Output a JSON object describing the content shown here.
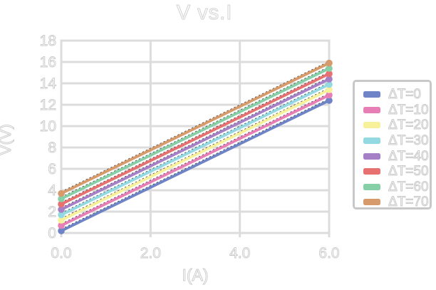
{
  "title": "V vs.I",
  "colors": {
    "background": "#ffffff",
    "grid": "#dcdcdc",
    "frame": "#dcdcdc",
    "text_fill": "#ffffff",
    "text_stroke": "#c9c9c9",
    "legend_border": "#c8c8c8",
    "trendline": "#2a2a2a"
  },
  "chart_data": {
    "type": "line",
    "title": "V vs.I",
    "xlabel": "I(A)",
    "ylabel": "V(V)",
    "xlim": [
      0,
      6
    ],
    "ylim": [
      0,
      18
    ],
    "xticks": [
      0,
      2,
      4,
      6
    ],
    "xtick_labels": [
      "0.0",
      "2.0",
      "4.0",
      "6.0"
    ],
    "yticks": [
      0,
      2,
      4,
      6,
      8,
      10,
      12,
      14,
      16,
      18
    ],
    "ytick_labels": [
      "0",
      "2",
      "4",
      "6",
      "8",
      "10",
      "12",
      "14",
      "16",
      "18"
    ],
    "grid": true,
    "legend_position": "right",
    "marker": "circle",
    "x": [
      0,
      6
    ],
    "series": [
      {
        "id": "dt0",
        "name": "ΔT=0",
        "color": "#6f84c6",
        "values": [
          0.2,
          12.4
        ]
      },
      {
        "id": "dt10",
        "name": "ΔT=10",
        "color": "#e77fb6",
        "values": [
          0.7,
          12.9
        ]
      },
      {
        "id": "dt20",
        "name": "ΔT=20",
        "color": "#f8f19b",
        "values": [
          1.2,
          13.4
        ]
      },
      {
        "id": "dt30",
        "name": "ΔT=30",
        "color": "#92d9e2",
        "values": [
          1.7,
          13.9
        ]
      },
      {
        "id": "dt40",
        "name": "ΔT=40",
        "color": "#a680c6",
        "values": [
          2.2,
          14.4
        ]
      },
      {
        "id": "dt50",
        "name": "ΔT=50",
        "color": "#e77070",
        "values": [
          2.7,
          14.9
        ]
      },
      {
        "id": "dt60",
        "name": "ΔT=60",
        "color": "#86cfa7",
        "values": [
          3.2,
          15.4
        ]
      },
      {
        "id": "dt70",
        "name": "ΔT=70",
        "color": "#d79a6a",
        "values": [
          3.7,
          15.9
        ]
      }
    ]
  }
}
